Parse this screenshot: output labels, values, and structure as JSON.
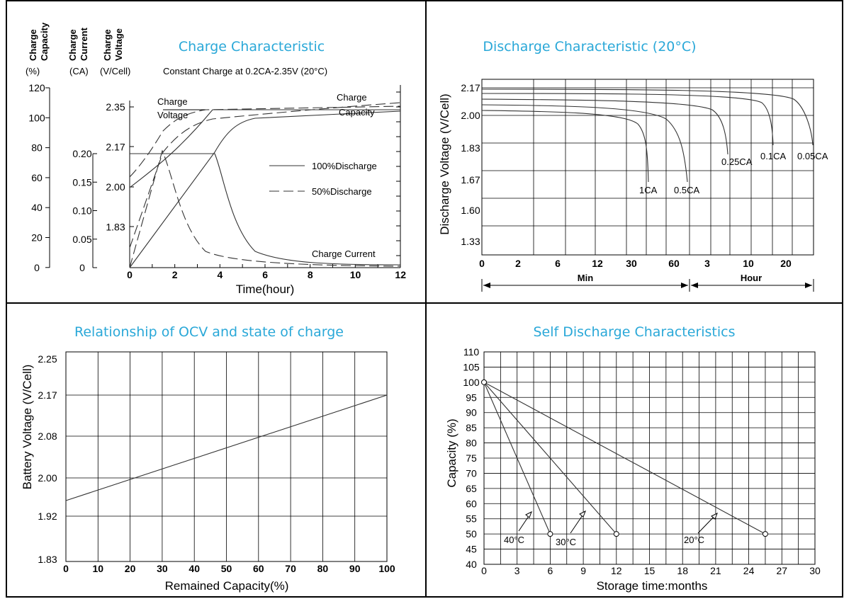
{
  "charts": {
    "charge": {
      "title": "Charge Characteristic",
      "subtitle": "Constant Charge at 0.2CA-2.35V  (20°C)",
      "col_headers": [
        {
          "lines": [
            "Charge",
            "Capacity"
          ],
          "unit": "(%)"
        },
        {
          "lines": [
            "Charge",
            "Current"
          ],
          "unit": "(CA)"
        },
        {
          "lines": [
            "Charge",
            "Voltage"
          ],
          "unit": "(V/Cell)"
        }
      ],
      "capacity_ticks": [
        "120",
        "100",
        "80",
        "60",
        "40",
        "20",
        "0"
      ],
      "current_ticks": [
        "0.20",
        "0.15",
        "0.10",
        "0.05",
        "0"
      ],
      "voltage_ticks": [
        "2.35",
        "2.17",
        "2.00",
        "1.83"
      ],
      "x_ticks": [
        "0",
        "2",
        "4",
        "6",
        "8",
        "10",
        "12"
      ],
      "xlabel": "Time(hour)",
      "annotations": {
        "charge_voltage": [
          "Charge",
          "Voltage"
        ],
        "charge_capacity": [
          "Charge",
          "Capacity"
        ],
        "charge_current": "Charge Current"
      },
      "legend": {
        "solid": "100%Discharge",
        "dashed": "50%Discharge"
      }
    },
    "discharge": {
      "title": "Discharge Characteristic  (20°C)",
      "ylabel": "Discharge Voltage (V/Cell)",
      "y_ticks": [
        "2.17",
        "2.00",
        "1.83",
        "1.67",
        "1.60",
        "1.33"
      ],
      "x_ticks": [
        "0",
        "2",
        "6",
        "12",
        "30",
        "60",
        "3",
        "10",
        "20"
      ],
      "min_label": "Min",
      "hour_label": "Hour",
      "curve_labels": [
        "1CA",
        "0.5CA",
        "0.25CA",
        "0.1CA",
        "0.05CA"
      ]
    },
    "ocv": {
      "title": "Relationship of OCV and state of charge",
      "ylabel": "Battery Voltage (V/Cell)",
      "xlabel": "Remained Capacity(%)",
      "y_ticks": [
        "2.25",
        "2.17",
        "2.08",
        "2.00",
        "1.92",
        "1.83"
      ],
      "x_ticks": [
        "0",
        "10",
        "20",
        "30",
        "40",
        "50",
        "60",
        "70",
        "80",
        "90",
        "100"
      ]
    },
    "self": {
      "title": "Self Discharge Characteristics",
      "ylabel": "Capacity (%)",
      "xlabel": "Storage time:months",
      "y_ticks": [
        "110",
        "105",
        "100",
        "95",
        "90",
        "85",
        "80",
        "75",
        "70",
        "65",
        "60",
        "55",
        "50",
        "45",
        "40"
      ],
      "x_ticks": [
        "0",
        "3",
        "6",
        "9",
        "12",
        "15",
        "18",
        "21",
        "24",
        "27",
        "30"
      ],
      "series_labels": [
        "40°C",
        "30°C",
        "20°C"
      ]
    }
  },
  "chart_data": [
    {
      "type": "line",
      "title": "Charge Characteristic",
      "subtitle": "Constant Charge at 0.2CA-2.35V  (20°C)",
      "xlabel": "Time(hour)",
      "xlim": [
        0,
        12
      ],
      "series": [
        {
          "name": "Charge Voltage",
          "x": [
            0,
            0.5,
            1,
            1.5,
            2,
            2.5,
            3,
            3.7,
            12
          ],
          "y": [
            2.0,
            2.03,
            2.07,
            2.12,
            2.18,
            2.24,
            2.29,
            2.35,
            2.35
          ]
        },
        {
          "name": "Charge Capacity",
          "x": [
            0,
            1,
            2,
            3,
            3.8,
            5,
            6,
            8,
            10,
            12
          ],
          "y": [
            0,
            27,
            54,
            81,
            100,
            103,
            105,
            106,
            107,
            108
          ]
        },
        {
          "name": "Charge Current",
          "x": [
            0,
            3.7,
            4,
            4.5,
            5,
            6,
            8,
            10,
            12
          ],
          "y": [
            0.2,
            0.2,
            0.17,
            0.1,
            0.06,
            0.025,
            0.01,
            0.005,
            0.004
          ]
        }
      ]
    },
    {
      "type": "line",
      "title": "Discharge Characteristic  (20°C)",
      "ylabel": "Discharge Voltage (V/Cell)",
      "series": [
        {
          "name": "1CA",
          "end_x": "40 Min",
          "end_y": 1.67
        },
        {
          "name": "0.5CA",
          "end_x": "60 Min",
          "end_y": 1.67
        },
        {
          "name": "0.25CA",
          "end_x": "5 Hour",
          "end_y": 1.83
        },
        {
          "name": "0.1CA",
          "end_x": "12 Hour",
          "end_y": 1.83
        },
        {
          "name": "0.05CA",
          "end_x": "24 Hour",
          "end_y": 1.83
        }
      ]
    },
    {
      "type": "line",
      "title": "Relationship of OCV and state of charge",
      "xlabel": "Remained Capacity(%)",
      "ylabel": "Battery Voltage (V/Cell)",
      "xlim": [
        0,
        100
      ],
      "series": [
        {
          "x": [
            0,
            100
          ],
          "y": [
            1.95,
            2.17
          ]
        }
      ]
    },
    {
      "type": "line",
      "title": "Self Discharge Characteristics",
      "xlabel": "Storage time:months",
      "ylabel": "Capacity (%)",
      "xlim": [
        0,
        30
      ],
      "ylim": [
        40,
        110
      ],
      "series": [
        {
          "name": "40°C",
          "x": [
            0,
            6
          ],
          "y": [
            100,
            50
          ]
        },
        {
          "name": "30°C",
          "x": [
            0,
            12
          ],
          "y": [
            100,
            50
          ]
        },
        {
          "name": "20°C",
          "x": [
            0,
            25.5
          ],
          "y": [
            100,
            50
          ]
        }
      ]
    }
  ]
}
